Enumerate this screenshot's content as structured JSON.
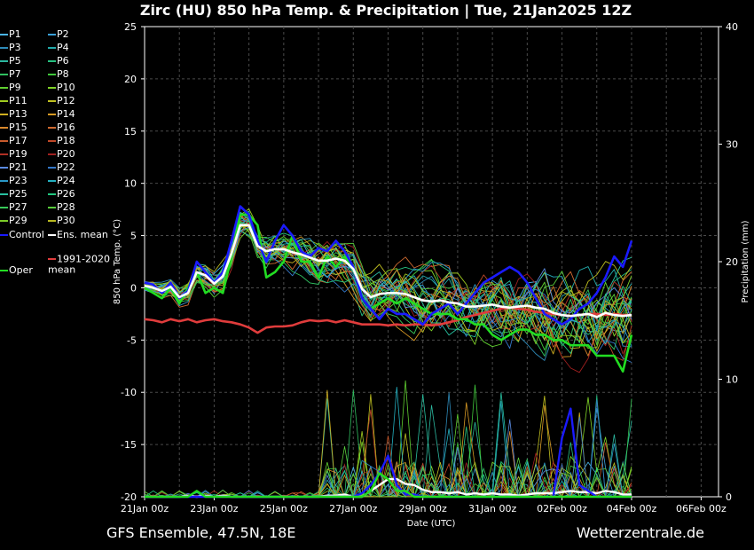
{
  "chart_data": {
    "type": "line",
    "title": "Zirc  (HU)  850 hPa Temp. & Precipitation | Tue, 21Jan2025 12Z",
    "xlabel": "Date (UTC)",
    "ylabel": "850 hPa Temp. (°C)",
    "y2label": "Precipitation (mm)",
    "ylim": [
      -20,
      25
    ],
    "y2lim": [
      0,
      40
    ],
    "yticks": [
      "25",
      "20",
      "15",
      "10",
      "5",
      "0",
      "-5",
      "-10",
      "-15",
      "-20"
    ],
    "y2ticks": [
      "40",
      "30",
      "20",
      "10",
      "0"
    ],
    "x_ticks": [
      "21Jan 00z",
      "23Jan 00z",
      "25Jan 00z",
      "27Jan 00z",
      "29Jan 00z",
      "31Jan 00z",
      "02Feb 00z",
      "04Feb 00z",
      "06Feb 00z"
    ],
    "x_range_hours": [
      0,
      396
    ],
    "step_hours": 6,
    "grid": true,
    "colors": {
      "background": "#000000",
      "grid": "#4a4a4a",
      "ens_mean": "#ffffff",
      "control": "#1a1aff",
      "oper": "#22dd22",
      "climate": "#e03c3c",
      "members": [
        "#4ab4e6",
        "#3aa0d8",
        "#2e8ab8",
        "#22aaaa",
        "#2cb8a0",
        "#26c080",
        "#30c060",
        "#40c83c",
        "#60d030",
        "#80d428",
        "#a0cc20",
        "#c0c020",
        "#d0b020",
        "#d89a24",
        "#d8882c",
        "#d06a30",
        "#c85a2c",
        "#c04828",
        "#b03024",
        "#a02020",
        "#5a8ae0",
        "#3478c8",
        "#2a98c8",
        "#24b0c0",
        "#28c0a0",
        "#22c880",
        "#38c858",
        "#58cc3c",
        "#7ccc28",
        "#b8b820"
      ]
    },
    "legend": {
      "members": [
        "P1",
        "P2",
        "P3",
        "P4",
        "P5",
        "P6",
        "P7",
        "P8",
        "P9",
        "P10",
        "P11",
        "P12",
        "P13",
        "P14",
        "P15",
        "P16",
        "P17",
        "P18",
        "P19",
        "P20",
        "P21",
        "P22",
        "P23",
        "P24",
        "P25",
        "P26",
        "P27",
        "P28",
        "P29",
        "P30"
      ],
      "control": "Control",
      "ens_mean": "Ens. mean",
      "climate": "1991-2020 mean",
      "oper": "Oper"
    },
    "series": [
      {
        "name": "Ens. mean",
        "values": [
          0.2,
          0,
          -0.3,
          0.1,
          -0.9,
          -0.5,
          1.5,
          1.2,
          0.4,
          1.1,
          3.3,
          6,
          6,
          4,
          3.5,
          3.7,
          3.7,
          3.4,
          3.2,
          2.9,
          2.6,
          2.6,
          2.8,
          2.6,
          1.8,
          -0.1,
          -0.9,
          -0.6,
          -0.5,
          -0.5,
          -0.6,
          -0.9,
          -1.2,
          -1.3,
          -1.2,
          -1.4,
          -1.5,
          -1.8,
          -1.8,
          -1.7,
          -1.6,
          -1.8,
          -1.9,
          -1.8,
          -1.7,
          -1.9,
          -2.0,
          -2.4,
          -2.6,
          -2.7,
          -2.6,
          -2.5,
          -2.8,
          -2.4,
          -2.6,
          -2.7,
          -2.6
        ]
      },
      {
        "name": "Control",
        "values": [
          0.5,
          0.3,
          -0.5,
          0.5,
          -1,
          -0.3,
          2.5,
          1.5,
          0.5,
          1.5,
          4.5,
          7.8,
          7,
          4.5,
          2.5,
          4.5,
          6,
          5,
          3.5,
          3,
          3.8,
          3.5,
          4.5,
          3.5,
          2,
          -1,
          -2,
          -3,
          -2,
          -2.5,
          -2.5,
          -3,
          -3.5,
          -2.5,
          -2,
          -1.5,
          -2.5,
          -1.5,
          -0.5,
          0.5,
          1,
          1.5,
          2,
          1.5,
          0.5,
          -1,
          -2.5,
          -3,
          -3.5,
          -3,
          -2,
          -1.5,
          -0.5,
          1,
          3,
          2,
          4.5
        ]
      },
      {
        "name": "Oper",
        "values": [
          0,
          -0.5,
          -1,
          0,
          -1.5,
          0,
          1.5,
          -0.5,
          0,
          -0.5,
          3,
          7,
          7,
          6,
          1,
          1.5,
          2.5,
          5,
          2.5,
          2.5,
          1,
          3,
          2,
          3,
          2,
          -1,
          -2,
          -1.5,
          -1,
          -1.5,
          -1,
          -1.5,
          -2,
          -2.5,
          -2.5,
          -2.5,
          -3,
          -3,
          -3.5,
          -3.5,
          -4.5,
          -5,
          -4.5,
          -4,
          -4,
          -4.5,
          -4.5,
          -5,
          -5,
          -5.5,
          -5.5,
          -5.5,
          -6.5,
          -6.5,
          -6.5,
          -8,
          -4.5
        ]
      },
      {
        "name": "1991-2020 mean",
        "values": [
          -3,
          -3.1,
          -3.3,
          -3.0,
          -3.2,
          -3.0,
          -3.3,
          -3.1,
          -3.0,
          -3.2,
          -3.3,
          -3.5,
          -3.8,
          -4.3,
          -3.8,
          -3.7,
          -3.7,
          -3.6,
          -3.3,
          -3.1,
          -3.2,
          -3.1,
          -3.3,
          -3.1,
          -3.3,
          -3.5,
          -3.5,
          -3.5,
          -3.6,
          -3.5,
          -3.6,
          -3.5,
          -3.5,
          -3.6,
          -3.5,
          -3.3,
          -3.1,
          -2.8,
          -2.6,
          -2.4,
          -2.2,
          -2.0,
          -1.9,
          -2.0,
          -2.1,
          -2.3,
          -2.4,
          -2.5,
          -2.6,
          -2.7,
          -2.6,
          -2.5,
          -2.5,
          -2.6,
          -2.5,
          -2.6,
          -2.6
        ]
      }
    ],
    "precipitation": [
      {
        "name": "Ens. mean",
        "values": [
          0,
          0,
          0,
          0,
          0,
          0.1,
          0,
          0.1,
          0,
          0.1,
          0,
          0,
          0,
          0,
          0,
          0,
          0,
          0,
          0,
          0,
          0,
          0.1,
          0.1,
          0.2,
          0,
          0,
          0.5,
          1,
          1.5,
          1.5,
          1.1,
          1,
          0.6,
          0.4,
          0.4,
          0.3,
          0.4,
          0.2,
          0.3,
          0.2,
          0.3,
          0.2,
          0.2,
          0.1,
          0.2,
          0.3,
          0.3,
          0.3,
          0.4,
          0.5,
          0.4,
          0.4,
          0.3,
          0.5,
          0.4,
          0.2,
          0.2
        ]
      },
      {
        "name": "Control",
        "values": [
          0,
          0,
          0,
          0,
          0,
          0,
          0,
          0,
          0,
          0,
          0,
          0,
          0,
          0,
          0,
          0,
          0,
          0,
          0,
          0,
          0,
          0,
          0,
          0,
          0,
          0.3,
          1,
          2,
          3.5,
          1,
          0.2,
          0.2,
          0,
          0,
          0,
          0,
          0,
          0,
          0,
          0,
          0,
          0,
          0,
          0,
          0,
          0,
          0,
          0,
          5,
          7.5,
          1,
          0.5,
          0,
          0,
          0,
          0,
          0
        ]
      },
      {
        "name": "Oper",
        "values": [
          0,
          0,
          0,
          0,
          0,
          0,
          0.5,
          0,
          0,
          0,
          0,
          0,
          0,
          0,
          0,
          0,
          0,
          0,
          0,
          0,
          0,
          0,
          0,
          0,
          0,
          0,
          0.5,
          2,
          1.5,
          0.5,
          0.5,
          0,
          0,
          0,
          0,
          0,
          0,
          0,
          0,
          0,
          0,
          0,
          0,
          0,
          0,
          0,
          0,
          0,
          0,
          0,
          0,
          0,
          0,
          0,
          0,
          0,
          0
        ]
      }
    ]
  },
  "footer": {
    "left": "GFS Ensemble, 47.5N, 18E",
    "right": "Wetterzentrale.de"
  }
}
